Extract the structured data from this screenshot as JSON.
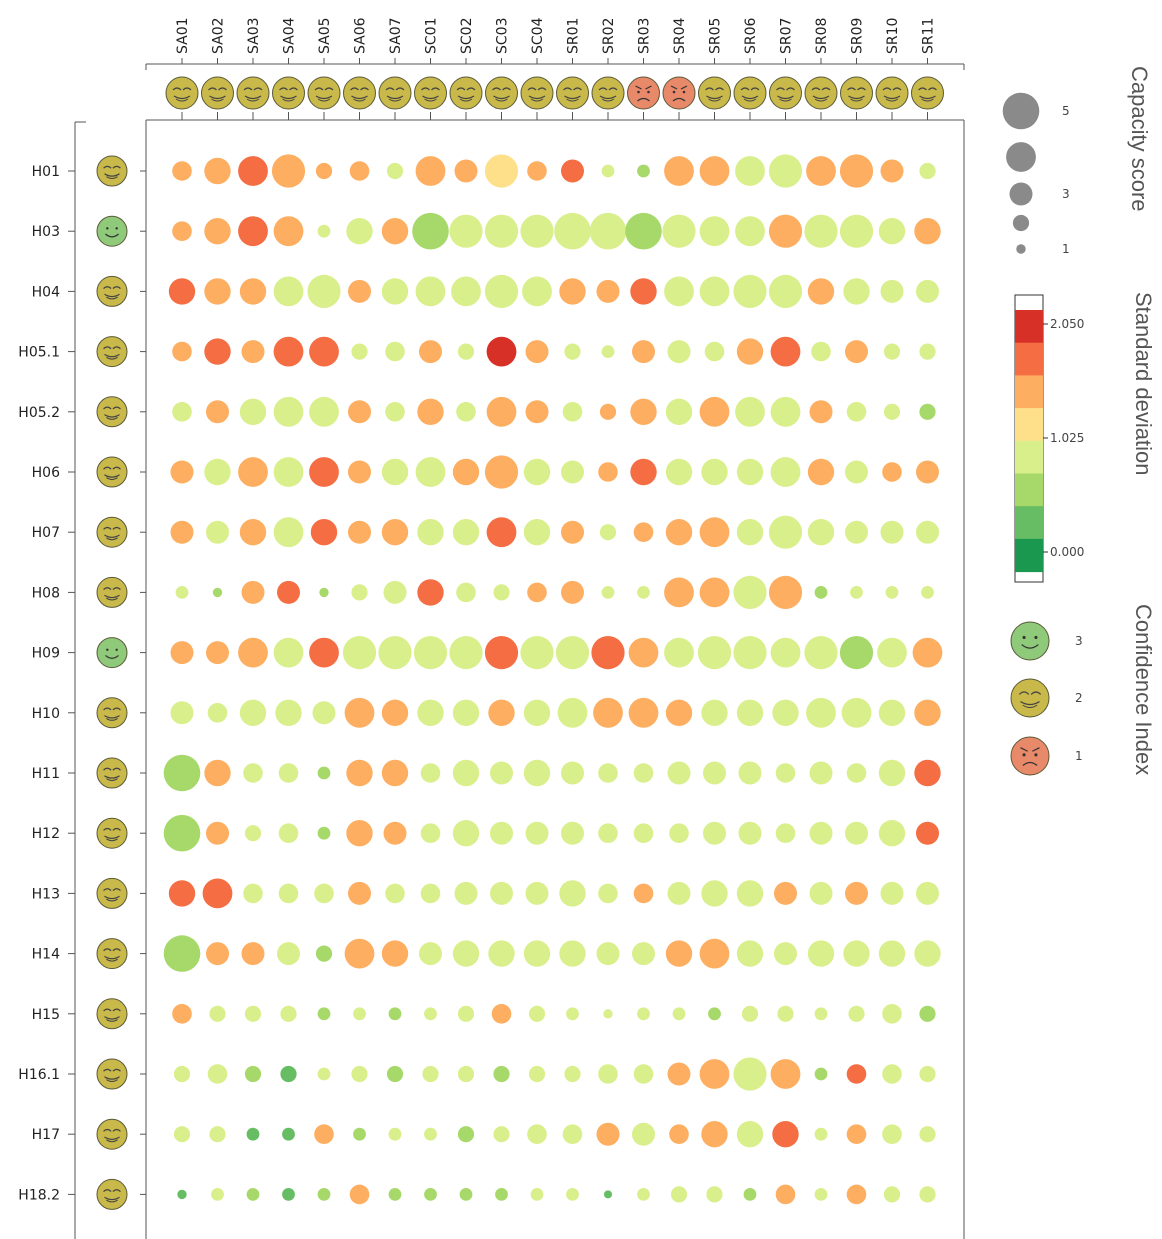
{
  "chart_data": {
    "type": "scatter",
    "columns": [
      "SA01",
      "SA02",
      "SA03",
      "SA04",
      "SA05",
      "SA06",
      "SA07",
      "SC01",
      "SC02",
      "SC03",
      "SC04",
      "SR01",
      "SR02",
      "SR03",
      "SR04",
      "SR05",
      "SR06",
      "SR07",
      "SR08",
      "SR09",
      "SR10",
      "SR11"
    ],
    "rows": [
      "H01",
      "H03",
      "H04",
      "H05.1",
      "H05.2",
      "H06",
      "H07",
      "H08",
      "H09",
      "H10",
      "H11",
      "H12",
      "H13",
      "H14",
      "H15",
      "H16.1",
      "H17",
      "H18.2"
    ],
    "column_confidence": [
      2,
      2,
      2,
      2,
      2,
      2,
      2,
      2,
      2,
      2,
      2,
      2,
      2,
      1,
      1,
      2,
      2,
      2,
      2,
      2,
      2,
      2
    ],
    "row_confidence": [
      2,
      3,
      2,
      2,
      2,
      2,
      2,
      2,
      3,
      2,
      2,
      2,
      2,
      2,
      2,
      2,
      2,
      2
    ],
    "capacity_score": [
      [
        2,
        3,
        3.5,
        4,
        1.5,
        2,
        1.5,
        3.5,
        2.5,
        4,
        2,
        2.5,
        1,
        1,
        3.5,
        3.5,
        3.5,
        4,
        3.5,
        4,
        2.5,
        1.5
      ],
      [
        2,
        3,
        3.5,
        3.5,
        1,
        3,
        3,
        4.5,
        4,
        4,
        4,
        4.5,
        4.5,
        4.5,
        4,
        3.5,
        3.5,
        4,
        4,
        4,
        3,
        3
      ],
      [
        3,
        3,
        3,
        3.5,
        4,
        2.5,
        3,
        3.5,
        3.5,
        4,
        3.5,
        3,
        2.5,
        3,
        3.5,
        3.5,
        4,
        4,
        3,
        3,
        2.5,
        2.5
      ],
      [
        2,
        3,
        2.5,
        3.5,
        3.5,
        1.5,
        2,
        2.5,
        1.5,
        3.5,
        2.5,
        1.5,
        1,
        2.5,
        2.5,
        2,
        3,
        3.5,
        2,
        2.5,
        1.5,
        1.5
      ],
      [
        2,
        2.5,
        3,
        3.5,
        3.5,
        2.5,
        2,
        3,
        2,
        3.5,
        2.5,
        2,
        1.5,
        3,
        3,
        3.5,
        3.5,
        3.5,
        2.5,
        2,
        1.5,
        1.5
      ],
      [
        2.5,
        3,
        3.5,
        3.5,
        3.5,
        2.5,
        3,
        3.5,
        3,
        4,
        3,
        2.5,
        2,
        3,
        3,
        3,
        3,
        3.5,
        3,
        2.5,
        2,
        2.5
      ],
      [
        2.5,
        2.5,
        3,
        3.5,
        3,
        2.5,
        3,
        3,
        3,
        3.5,
        3,
        2.5,
        1.5,
        2,
        3,
        3.5,
        3,
        4,
        3,
        2.5,
        2.5,
        2.5
      ],
      [
        1,
        0.5,
        2.5,
        2.5,
        0.5,
        1.5,
        2.5,
        3,
        2,
        1.5,
        2,
        2.5,
        1,
        1,
        3.5,
        3.5,
        4,
        4,
        1,
        1,
        1,
        1
      ],
      [
        2.5,
        2.5,
        3.5,
        3.5,
        3.5,
        4,
        4,
        4,
        4,
        4,
        4,
        4,
        4,
        3.5,
        3.5,
        4,
        4,
        3.5,
        4,
        4,
        3.5,
        3.5
      ],
      [
        2.5,
        2,
        3,
        3,
        2.5,
        3.5,
        3,
        3,
        3,
        3,
        3,
        3.5,
        3.5,
        3.5,
        3,
        3,
        3,
        3,
        3.5,
        3.5,
        3,
        3
      ],
      [
        4.5,
        3,
        2,
        2,
        1,
        3,
        3,
        2,
        3,
        2.5,
        3,
        2.5,
        2,
        2,
        2.5,
        2.5,
        2.5,
        2,
        2.5,
        2,
        3,
        3
      ],
      [
        4.5,
        2.5,
        1.5,
        2,
        1,
        3,
        2.5,
        2,
        3,
        2.5,
        2.5,
        2.5,
        2,
        2,
        2,
        2.5,
        2.5,
        2,
        2.5,
        2.5,
        3,
        2.5
      ],
      [
        3,
        3.5,
        2,
        2,
        2,
        2.5,
        2,
        2,
        2.5,
        2.5,
        2.5,
        3,
        2,
        2,
        2.5,
        3,
        3,
        2.5,
        2.5,
        2.5,
        2.5,
        2.5
      ],
      [
        4.5,
        2.5,
        2.5,
        2.5,
        1.5,
        3.5,
        3,
        2.5,
        3,
        3,
        3,
        3,
        2.5,
        2.5,
        3,
        3.5,
        3,
        2.5,
        3,
        3,
        3,
        3
      ],
      [
        2,
        1.5,
        1.5,
        1.5,
        1,
        1,
        1,
        1,
        1.5,
        2,
        1.5,
        1,
        0.5,
        1,
        1,
        1,
        1.5,
        1.5,
        1,
        1.5,
        2,
        1.5
      ],
      [
        1.5,
        2,
        1.5,
        1.5,
        1,
        1.5,
        1.5,
        1.5,
        1.5,
        1.5,
        1.5,
        1.5,
        2,
        2,
        2.5,
        3.5,
        4,
        3.5,
        1,
        2,
        2,
        1.5
      ],
      [
        1.5,
        1.5,
        1,
        1,
        2,
        1,
        1,
        1,
        1.5,
        1.5,
        2,
        2,
        2.5,
        2.5,
        2,
        3,
        3,
        3,
        1,
        2,
        2,
        1.5
      ],
      [
        0.5,
        1,
        1,
        1,
        1,
        2,
        1,
        1,
        1,
        1,
        1,
        1,
        0.3,
        1,
        1.5,
        1.5,
        1,
        2,
        1,
        2,
        1.5,
        1.5
      ]
    ],
    "standard_deviation": [
      [
        1.5,
        1.5,
        1.8,
        1.5,
        1.5,
        1.5,
        1.1,
        1.5,
        1.5,
        1.2,
        1.5,
        1.8,
        0.9,
        0.8,
        1.5,
        1.5,
        1.1,
        1.1,
        1.5,
        1.5,
        1.5,
        1.1
      ],
      [
        1.5,
        1.5,
        1.8,
        1.5,
        1.1,
        1.1,
        1.5,
        0.6,
        1.1,
        1.1,
        1.1,
        0.9,
        0.9,
        0.6,
        1.1,
        0.9,
        0.9,
        1.5,
        0.9,
        0.9,
        1.1,
        1.5
      ],
      [
        1.8,
        1.5,
        1.5,
        0.9,
        1.1,
        1.5,
        1.1,
        1.1,
        1.1,
        1.1,
        1.1,
        1.5,
        1.5,
        1.8,
        1.1,
        1.1,
        0.9,
        0.9,
        1.5,
        0.9,
        1.1,
        1.1
      ],
      [
        1.5,
        1.8,
        1.5,
        1.8,
        1.8,
        1.1,
        1.1,
        1.5,
        0.9,
        2.1,
        1.5,
        1.1,
        1.1,
        1.5,
        1.1,
        1.1,
        1.5,
        1.8,
        1.1,
        1.5,
        1.1,
        0.9
      ],
      [
        1.1,
        1.5,
        1.1,
        1.1,
        1.1,
        1.5,
        1.1,
        1.5,
        0.9,
        1.5,
        1.5,
        1.1,
        1.5,
        1.5,
        1.1,
        1.5,
        1.1,
        1.1,
        1.5,
        1.1,
        0.9,
        0.6
      ],
      [
        1.5,
        1.1,
        1.5,
        1.1,
        1.8,
        1.5,
        1.1,
        1.1,
        1.5,
        1.5,
        0.9,
        1.1,
        1.5,
        1.8,
        1.1,
        1.1,
        1.1,
        1.1,
        1.5,
        1.1,
        1.5,
        1.5
      ],
      [
        1.5,
        1.1,
        1.5,
        1.1,
        1.8,
        1.5,
        1.5,
        1.1,
        1.1,
        1.8,
        1.1,
        1.5,
        1.1,
        1.5,
        1.5,
        1.5,
        1.1,
        1.1,
        0.9,
        0.9,
        1.1,
        1.1
      ],
      [
        1.1,
        0.6,
        1.5,
        1.8,
        0.6,
        1.1,
        1.1,
        1.8,
        1.1,
        1.1,
        1.5,
        1.5,
        0.9,
        0.9,
        1.5,
        1.5,
        1.1,
        1.5,
        0.6,
        0.9,
        1.1,
        1.1
      ],
      [
        1.5,
        1.5,
        1.5,
        1.1,
        1.8,
        1.1,
        0.9,
        1.1,
        0.9,
        1.8,
        0.9,
        0.9,
        1.8,
        1.5,
        1.1,
        0.9,
        0.9,
        1.1,
        0.9,
        0.6,
        1.1,
        1.5
      ],
      [
        1.1,
        1.1,
        1.1,
        0.9,
        1.1,
        1.5,
        1.5,
        0.9,
        1.1,
        1.5,
        0.9,
        1.1,
        1.5,
        1.5,
        1.5,
        1.1,
        1.1,
        1.1,
        1.1,
        0.9,
        1.1,
        1.5
      ],
      [
        0.6,
        1.5,
        1.1,
        0.9,
        0.6,
        1.5,
        1.5,
        1.1,
        0.9,
        0.9,
        1.1,
        0.9,
        0.9,
        0.9,
        1.1,
        1.1,
        0.9,
        0.9,
        0.9,
        1.1,
        1.1,
        1.8
      ],
      [
        0.6,
        1.5,
        0.9,
        0.9,
        0.6,
        1.5,
        1.5,
        1.1,
        0.9,
        0.9,
        1.1,
        1.1,
        0.9,
        0.9,
        0.9,
        0.9,
        0.9,
        0.9,
        1.1,
        1.1,
        1.1,
        1.8
      ],
      [
        1.8,
        1.8,
        0.9,
        1.1,
        1.1,
        1.5,
        1.1,
        0.9,
        0.9,
        1.1,
        1.1,
        1.1,
        1.1,
        1.5,
        1.1,
        1.1,
        1.1,
        1.5,
        1.1,
        1.5,
        1.1,
        1.1
      ],
      [
        0.6,
        1.5,
        1.5,
        1.1,
        0.6,
        1.5,
        1.5,
        1.1,
        1.1,
        1.1,
        1.1,
        1.1,
        0.9,
        1.1,
        1.5,
        1.5,
        1.1,
        1.1,
        1.1,
        1.1,
        1.1,
        1.1
      ],
      [
        1.5,
        1.1,
        0.9,
        0.9,
        0.6,
        1.1,
        0.6,
        0.9,
        0.9,
        1.5,
        1.1,
        1.1,
        0.9,
        1.1,
        1.1,
        0.6,
        0.9,
        1.1,
        0.9,
        1.1,
        1.1,
        0.6
      ],
      [
        0.9,
        1.1,
        0.6,
        0.5,
        0.9,
        1.1,
        0.6,
        0.9,
        0.9,
        0.6,
        0.9,
        0.9,
        1.1,
        1.1,
        1.5,
        1.5,
        0.9,
        1.5,
        0.6,
        1.8,
        1.1,
        0.9
      ],
      [
        1.1,
        1.1,
        0.5,
        0.5,
        1.5,
        0.6,
        0.9,
        0.9,
        0.6,
        1.1,
        1.1,
        1.1,
        1.5,
        1.1,
        1.5,
        1.5,
        1.1,
        1.8,
        0.9,
        1.5,
        1.1,
        0.9
      ],
      [
        0.5,
        0.9,
        0.6,
        0.5,
        0.6,
        1.5,
        0.6,
        0.6,
        0.6,
        0.6,
        0.9,
        0.9,
        0.3,
        0.9,
        1.1,
        1.1,
        0.6,
        1.5,
        0.9,
        1.5,
        0.9,
        0.9
      ]
    ],
    "size_legend": {
      "title": "Capacity score",
      "labels": [
        "5",
        "",
        "3",
        "",
        "1"
      ],
      "values": [
        5,
        4,
        3,
        2,
        1
      ]
    },
    "color_legend": {
      "title": "Standard deviation",
      "ticks": [
        "2.050",
        "1.025",
        "0.000"
      ],
      "range": [
        0,
        2.3
      ]
    },
    "confidence_legend": {
      "title": "Confidence Index",
      "labels": [
        "3",
        "2",
        "1"
      ],
      "values": [
        3,
        2,
        1
      ]
    },
    "colors": {
      "scale": [
        "#1a9850",
        "#66bd63",
        "#a6d96a",
        "#d9ef8b",
        "#fee08b",
        "#fdae61",
        "#f46d43",
        "#d73027"
      ],
      "face_3": "#8fc97a",
      "face_2": "#c9b84a",
      "face_1": "#e8896a"
    }
  }
}
